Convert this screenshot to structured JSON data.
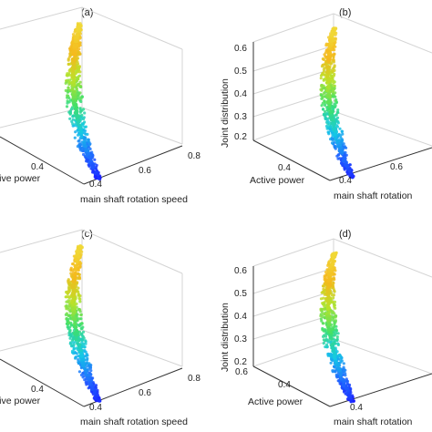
{
  "chart_data": [
    {
      "type": "scatter",
      "panel_label": "(a)",
      "title": "",
      "xlabel": "main shaft rotation speed",
      "ylabel": "Active power",
      "zlabel": "",
      "x_ticks": [
        "0.4",
        "0.6",
        "0.8"
      ],
      "y_ticks": [
        "0.4"
      ],
      "z_ticks": [],
      "colormap": [
        "#1a1aff",
        "#1f6bff",
        "#14c8e6",
        "#3fe06a",
        "#b8e22a",
        "#f5b81c",
        "#f0d836"
      ],
      "grid": true,
      "series": [
        {
          "x": [
            0.4,
            0.47,
            0.54,
            0.6,
            0.67,
            0.74,
            0.8
          ],
          "y": [
            0.4,
            0.46,
            0.52,
            0.58,
            0.64,
            0.7,
            0.76
          ],
          "z": [
            0.2,
            0.27,
            0.34,
            0.42,
            0.49,
            0.56,
            0.62
          ]
        }
      ]
    },
    {
      "type": "scatter",
      "panel_label": "(b)",
      "title": "",
      "xlabel": "main shaft rotation",
      "ylabel": "Active power",
      "zlabel": "Joint distribution",
      "x_ticks": [
        "0.4",
        "0.6"
      ],
      "y_ticks": [
        "0.4"
      ],
      "z_ticks": [
        "0.2",
        "0.3",
        "0.4",
        "0.5",
        "0.6"
      ],
      "zlim": [
        0.2,
        0.6
      ],
      "colormap": [
        "#1a1aff",
        "#1f6bff",
        "#14c8e6",
        "#3fe06a",
        "#b8e22a",
        "#f5b81c",
        "#f0d836"
      ],
      "grid": true,
      "series": [
        {
          "x": [
            0.4,
            0.47,
            0.54,
            0.6,
            0.67,
            0.74,
            0.8
          ],
          "y": [
            0.4,
            0.46,
            0.52,
            0.58,
            0.64,
            0.7,
            0.76
          ],
          "z": [
            0.2,
            0.27,
            0.34,
            0.42,
            0.49,
            0.56,
            0.62
          ]
        }
      ]
    },
    {
      "type": "scatter",
      "panel_label": "(c)",
      "title": "",
      "xlabel": "main shaft rotation speed",
      "ylabel": "Active power",
      "zlabel": "",
      "x_ticks": [
        "0.4",
        "0.6",
        "0.8"
      ],
      "y_ticks": [
        "0.4"
      ],
      "z_ticks": [],
      "colormap": [
        "#1a1aff",
        "#1f6bff",
        "#14c8e6",
        "#3fe06a",
        "#b8e22a",
        "#f5b81c",
        "#f0d836"
      ],
      "grid": true,
      "series": [
        {
          "x": [
            0.4,
            0.47,
            0.54,
            0.6,
            0.67,
            0.74,
            0.8
          ],
          "y": [
            0.4,
            0.46,
            0.52,
            0.58,
            0.64,
            0.7,
            0.76
          ],
          "z": [
            0.2,
            0.27,
            0.34,
            0.42,
            0.49,
            0.56,
            0.62
          ]
        }
      ]
    },
    {
      "type": "scatter",
      "panel_label": "(d)",
      "title": "",
      "xlabel": "main shaft rotation",
      "ylabel": "Active power",
      "zlabel": "Joint distribution",
      "x_ticks": [
        "0.4"
      ],
      "y_ticks": [
        "0.4",
        "0.6"
      ],
      "z_ticks": [
        "0.2",
        "0.3",
        "0.4",
        "0.5",
        "0.6"
      ],
      "zlim": [
        0.2,
        0.6
      ],
      "colormap": [
        "#1a1aff",
        "#1f6bff",
        "#14c8e6",
        "#3fe06a",
        "#b8e22a",
        "#f5b81c",
        "#f0d836"
      ],
      "grid": true,
      "series": [
        {
          "x": [
            0.4,
            0.47,
            0.54,
            0.6,
            0.67,
            0.74,
            0.8
          ],
          "y": [
            0.4,
            0.46,
            0.52,
            0.58,
            0.64,
            0.7,
            0.76
          ],
          "z": [
            0.2,
            0.27,
            0.34,
            0.42,
            0.49,
            0.56,
            0.62
          ]
        }
      ]
    }
  ]
}
